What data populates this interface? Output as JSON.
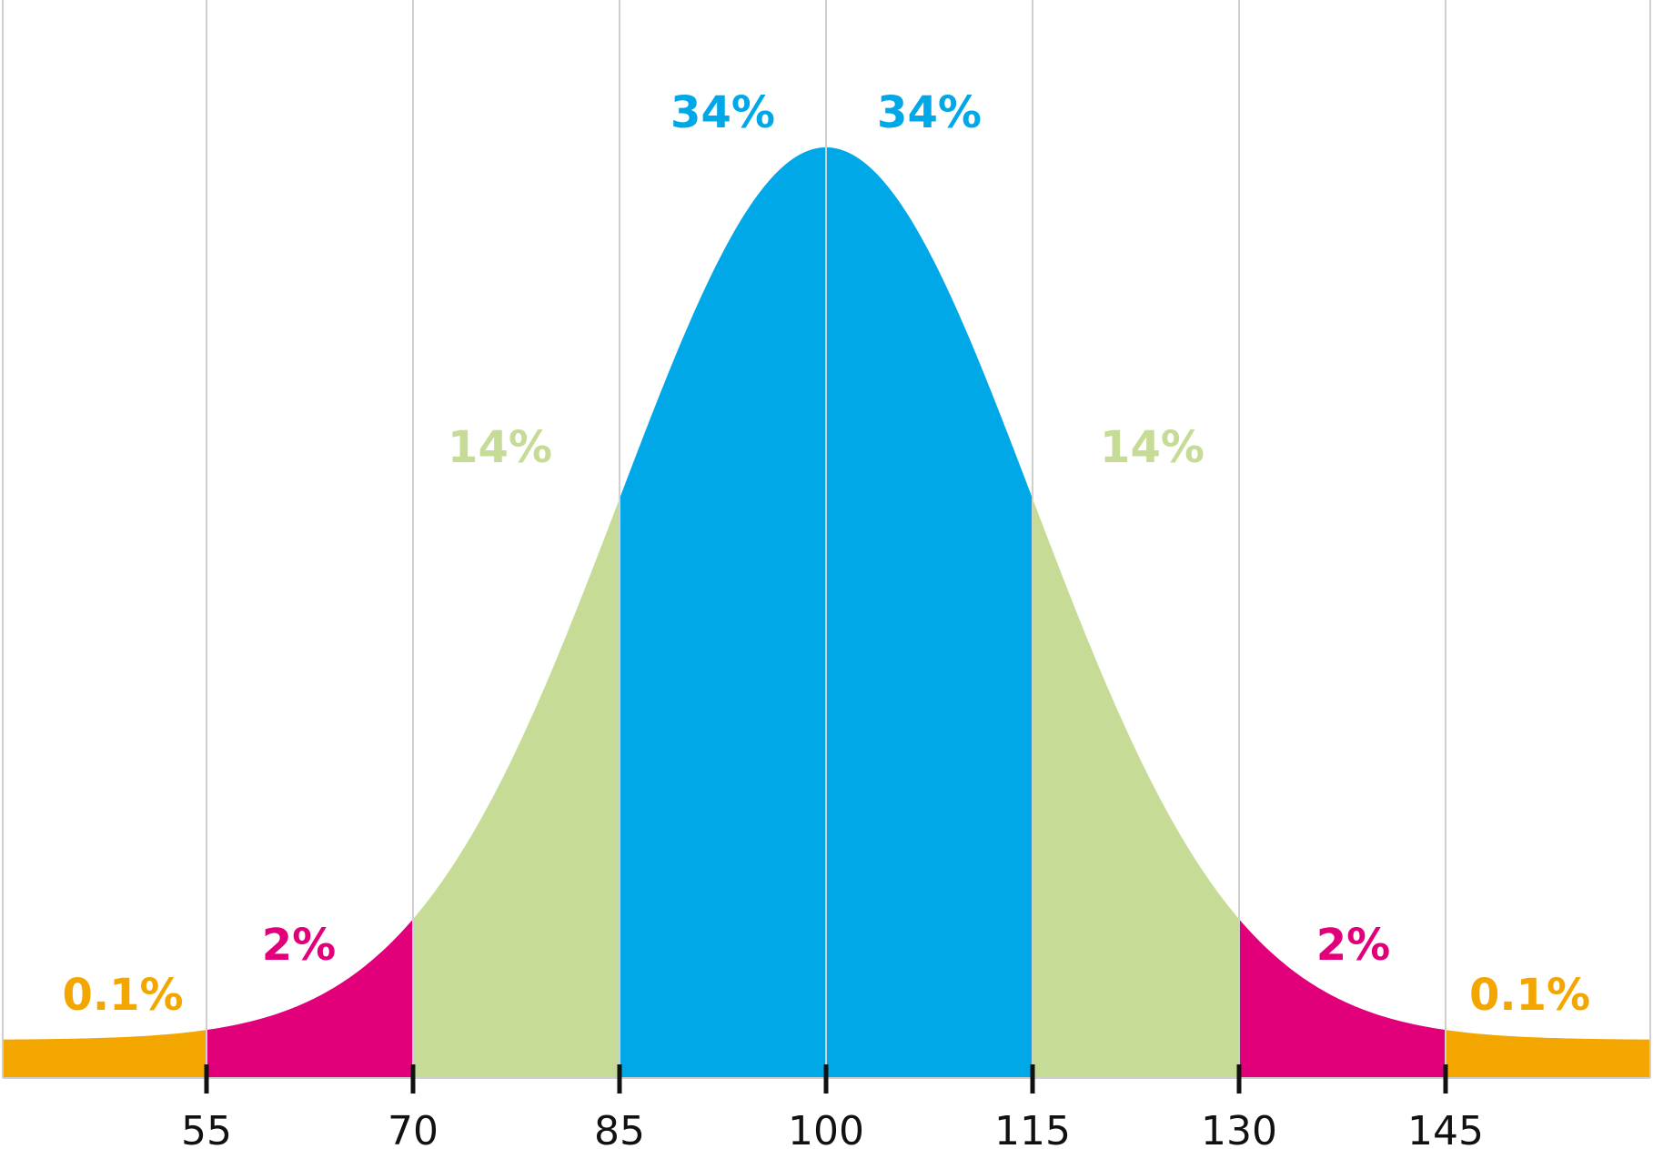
{
  "chart_data": {
    "type": "area",
    "title": "",
    "xlabel": "",
    "ylabel": "",
    "distribution": {
      "mean": 100,
      "sd": 15
    },
    "xlim": [
      40,
      160
    ],
    "x_ticks": [
      55,
      70,
      85,
      100,
      115,
      130,
      145
    ],
    "x_tick_labels": [
      "55",
      "70",
      "85",
      "100",
      "115",
      "130",
      "145"
    ],
    "grid": "vertical lines at each tick",
    "bands": [
      {
        "from": 40,
        "to": 55,
        "label": "0.1%",
        "color": "#F4A600"
      },
      {
        "from": 55,
        "to": 70,
        "label": "2%",
        "color": "#E2007A"
      },
      {
        "from": 70,
        "to": 85,
        "label": "14%",
        "color": "#C5DB96"
      },
      {
        "from": 85,
        "to": 100,
        "label": "34%",
        "color": "#00A8E8"
      },
      {
        "from": 100,
        "to": 115,
        "label": "34%",
        "color": "#00A8E8"
      },
      {
        "from": 115,
        "to": 130,
        "label": "14%",
        "color": "#C5DB96"
      },
      {
        "from": 130,
        "to": 145,
        "label": "2%",
        "color": "#E2007A"
      },
      {
        "from": 145,
        "to": 160,
        "label": "0.1%",
        "color": "#F4A600"
      }
    ]
  }
}
